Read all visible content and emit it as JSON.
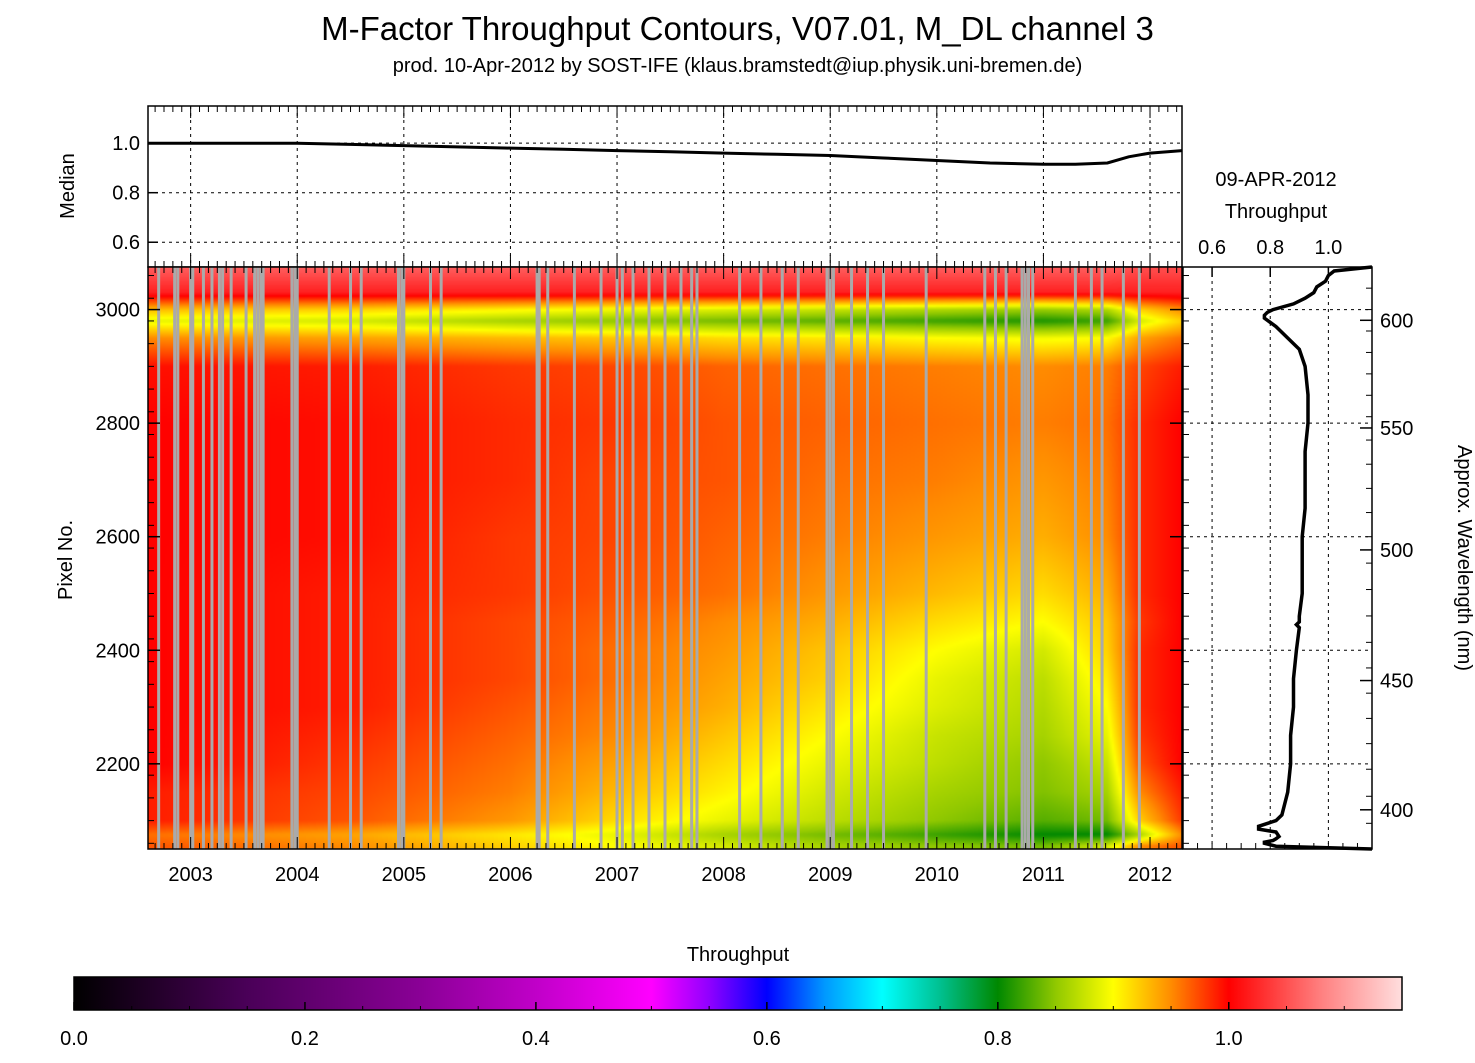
{
  "header": {
    "title": "M-Factor Throughput Contours, V07.01, M_DL channel 3",
    "subtitle": "prod. 10-Apr-2012 by SOST-IFE (klaus.bramstedt@iup.physik.uni-bremen.de)"
  },
  "chart_data": [
    {
      "type": "line",
      "panel": "median-time-series",
      "ylabel": "Median",
      "xlim": [
        2002.6,
        2012.3
      ],
      "ylim": [
        0.5,
        1.15
      ],
      "yticks": [
        0.6,
        0.8,
        1.0
      ],
      "ytick_labels": [
        "0.6",
        "0.8",
        "1.0"
      ],
      "grid": true,
      "series": [
        {
          "x": [
            2002.6,
            2003.0,
            2003.5,
            2004.0,
            2004.5,
            2005.0,
            2005.5,
            2006.0,
            2006.5,
            2007.0,
            2007.5,
            2008.0,
            2008.5,
            2009.0,
            2009.5,
            2010.0,
            2010.5,
            2011.0,
            2011.3,
            2011.6,
            2011.8,
            2012.0,
            2012.3
          ],
          "y": [
            1.0,
            1.0,
            1.0,
            1.0,
            0.995,
            0.99,
            0.985,
            0.98,
            0.975,
            0.97,
            0.965,
            0.96,
            0.955,
            0.95,
            0.94,
            0.93,
            0.92,
            0.915,
            0.915,
            0.92,
            0.945,
            0.96,
            0.97
          ]
        }
      ]
    },
    {
      "type": "heatmap",
      "panel": "throughput-contours",
      "ylabel": "Pixel No.",
      "xlim": [
        2002.6,
        2012.3
      ],
      "ylim": [
        2050,
        3075
      ],
      "xticks": [
        2003,
        2004,
        2005,
        2006,
        2007,
        2008,
        2009,
        2010,
        2011,
        2012
      ],
      "xtick_labels": [
        "2003",
        "2004",
        "2005",
        "2006",
        "2007",
        "2008",
        "2009",
        "2010",
        "2011",
        "2012"
      ],
      "yticks": [
        2200,
        2400,
        2600,
        2800,
        3000
      ],
      "ytick_labels": [
        "2200",
        "2400",
        "2600",
        "2800",
        "3000"
      ],
      "value_grid": {
        "x": [
          2002.6,
          2004.5,
          2006.0,
          2007.0,
          2008.0,
          2009.0,
          2010.0,
          2011.0,
          2011.6,
          2011.9,
          2012.3
        ],
        "y": [
          2055,
          2075,
          2100,
          2150,
          2200,
          2250,
          2300,
          2350,
          2400,
          2450,
          2500,
          2600,
          2700,
          2800,
          2900,
          2950,
          2980,
          3000,
          3030,
          3075
        ],
        "z": [
          [
            0.97,
            0.95,
            0.92,
            0.9,
            0.88,
            0.86,
            0.85,
            0.84,
            0.88,
            0.95,
            0.97
          ],
          [
            0.96,
            0.94,
            0.91,
            0.89,
            0.86,
            0.84,
            0.82,
            0.8,
            0.8,
            0.86,
            0.95
          ],
          [
            0.99,
            0.97,
            0.945,
            0.915,
            0.89,
            0.87,
            0.85,
            0.83,
            0.84,
            0.92,
            0.98
          ],
          [
            0.99,
            0.975,
            0.955,
            0.93,
            0.905,
            0.88,
            0.86,
            0.845,
            0.86,
            0.95,
            0.99
          ],
          [
            1.0,
            0.98,
            0.96,
            0.94,
            0.915,
            0.89,
            0.87,
            0.85,
            0.875,
            0.97,
            1.0
          ],
          [
            1.0,
            0.985,
            0.965,
            0.95,
            0.925,
            0.9,
            0.875,
            0.86,
            0.89,
            0.98,
            1.0
          ],
          [
            1.0,
            0.99,
            0.97,
            0.955,
            0.935,
            0.91,
            0.885,
            0.865,
            0.9,
            0.985,
            1.0
          ],
          [
            1.0,
            0.99,
            0.975,
            0.96,
            0.94,
            0.92,
            0.89,
            0.87,
            0.91,
            0.985,
            1.0
          ],
          [
            1.0,
            0.99,
            0.975,
            0.96,
            0.945,
            0.925,
            0.9,
            0.88,
            0.92,
            0.985,
            1.0
          ],
          [
            1.0,
            0.99,
            0.975,
            0.965,
            0.95,
            0.935,
            0.915,
            0.9,
            0.925,
            0.98,
            1.0
          ],
          [
            1.0,
            0.99,
            0.98,
            0.97,
            0.96,
            0.945,
            0.93,
            0.915,
            0.935,
            0.985,
            1.0
          ],
          [
            1.0,
            0.995,
            0.98,
            0.975,
            0.965,
            0.955,
            0.945,
            0.935,
            0.95,
            0.985,
            1.0
          ],
          [
            1.0,
            0.995,
            0.985,
            0.975,
            0.97,
            0.96,
            0.955,
            0.945,
            0.955,
            0.985,
            1.0
          ],
          [
            1.0,
            0.995,
            0.985,
            0.98,
            0.97,
            0.965,
            0.96,
            0.955,
            0.96,
            0.985,
            1.0
          ],
          [
            0.995,
            0.99,
            0.98,
            0.975,
            0.965,
            0.96,
            0.955,
            0.95,
            0.955,
            0.975,
            0.99
          ],
          [
            0.95,
            0.94,
            0.93,
            0.925,
            0.915,
            0.91,
            0.9,
            0.895,
            0.9,
            0.94,
            0.96
          ],
          [
            0.89,
            0.88,
            0.86,
            0.85,
            0.84,
            0.83,
            0.82,
            0.81,
            0.82,
            0.88,
            0.92
          ],
          [
            0.93,
            0.92,
            0.905,
            0.895,
            0.885,
            0.875,
            0.865,
            0.855,
            0.865,
            0.92,
            0.95
          ],
          [
            1.02,
            1.02,
            1.02,
            1.02,
            1.02,
            1.02,
            1.02,
            1.02,
            1.02,
            1.02,
            1.02
          ],
          [
            1.06,
            1.06,
            1.06,
            1.06,
            1.06,
            1.06,
            1.06,
            1.06,
            1.06,
            1.05,
            1.05
          ]
        ]
      },
      "data_gaps_x": [
        2002.7,
        2002.85,
        2002.88,
        2003.0,
        2003.02,
        2003.12,
        2003.2,
        2003.27,
        2003.3,
        2003.38,
        2003.52,
        2003.6,
        2003.63,
        2003.66,
        2003.68,
        2003.95,
        2003.98,
        2004.0,
        2004.3,
        2004.5,
        2004.6,
        2004.95,
        2004.98,
        2005.0,
        2005.25,
        2005.35,
        2006.25,
        2006.27,
        2006.35,
        2006.6,
        2006.85,
        2007.0,
        2007.05,
        2007.15,
        2007.3,
        2007.45,
        2007.6,
        2007.7,
        2007.75,
        2008.15,
        2008.35,
        2008.55,
        2008.7,
        2008.97,
        2009.0,
        2009.03,
        2009.2,
        2009.35,
        2009.5,
        2009.9,
        2010.45,
        2010.55,
        2010.65,
        2010.8,
        2010.83,
        2010.86,
        2010.9,
        2011.3,
        2011.45,
        2011.55,
        2011.75,
        2011.9
      ]
    },
    {
      "type": "line",
      "panel": "throughput-profile",
      "title": "09-APR-2012",
      "xlabel": "Throughput",
      "ylabel": "Approx. Wavelength (nm)",
      "xlim": [
        0.5,
        1.15
      ],
      "xticks": [
        0.6,
        0.8,
        1.0
      ],
      "xtick_labels": [
        "0.6",
        "0.8",
        "1.0"
      ],
      "ylim": [
        2050,
        3075
      ],
      "yticks_right": [
        400,
        450,
        500,
        550,
        600
      ],
      "ytick_labels_right": [
        "400",
        "450",
        "500",
        "550",
        "600"
      ],
      "wavelength_at_pixel": {
        "pixel": [
          2100,
          2200,
          2400,
          2600,
          2800,
          3000
        ],
        "nm": [
          396,
          417,
          462,
          505,
          552,
          605
        ]
      },
      "series": [
        {
          "y": [
            2050,
            2055,
            2060,
            2062,
            2065,
            2068,
            2072,
            2080,
            2085,
            2090,
            2100,
            2110,
            2130,
            2150,
            2200,
            2250,
            2300,
            2350,
            2400,
            2440,
            2445,
            2450,
            2460,
            2500,
            2550,
            2600,
            2650,
            2700,
            2750,
            2800,
            2850,
            2900,
            2930,
            2950,
            2970,
            2985,
            2990,
            2995,
            3000,
            3010,
            3020,
            3030,
            3040,
            3050,
            3060,
            3068,
            3075
          ],
          "x": [
            1.15,
            0.82,
            0.78,
            0.78,
            0.81,
            0.82,
            0.83,
            0.82,
            0.76,
            0.76,
            0.82,
            0.84,
            0.85,
            0.86,
            0.87,
            0.87,
            0.88,
            0.88,
            0.89,
            0.9,
            0.89,
            0.9,
            0.9,
            0.91,
            0.91,
            0.91,
            0.92,
            0.92,
            0.92,
            0.93,
            0.93,
            0.92,
            0.9,
            0.86,
            0.82,
            0.78,
            0.78,
            0.79,
            0.81,
            0.88,
            0.92,
            0.95,
            0.96,
            0.99,
            1.0,
            1.02,
            1.15
          ]
        }
      ]
    },
    {
      "type": "colorbar",
      "panel": "throughput-colorbar",
      "title": "Throughput",
      "range": [
        0.0,
        1.15
      ],
      "ticks": [
        0.0,
        0.2,
        0.4,
        0.6,
        0.8,
        1.0
      ],
      "tick_labels": [
        "0.0",
        "0.2",
        "0.4",
        "0.6",
        "0.8",
        "1.0"
      ],
      "colormap": [
        [
          0.0,
          "#000000"
        ],
        [
          0.15,
          "#4a0058"
        ],
        [
          0.3,
          "#8a0096"
        ],
        [
          0.4,
          "#c000c8"
        ],
        [
          0.5,
          "#ff00ff"
        ],
        [
          0.55,
          "#9000ff"
        ],
        [
          0.6,
          "#0000ff"
        ],
        [
          0.65,
          "#0098ff"
        ],
        [
          0.7,
          "#00ffff"
        ],
        [
          0.75,
          "#00c090"
        ],
        [
          0.8,
          "#008800"
        ],
        [
          0.85,
          "#90c800"
        ],
        [
          0.9,
          "#ffff00"
        ],
        [
          0.95,
          "#ff8c00"
        ],
        [
          1.0,
          "#ff0000"
        ],
        [
          1.08,
          "#ff8080"
        ],
        [
          1.15,
          "#ffdede"
        ]
      ]
    }
  ],
  "colors": {
    "gap": "#aaaaaa",
    "grid": "#000000",
    "line": "#000000"
  }
}
